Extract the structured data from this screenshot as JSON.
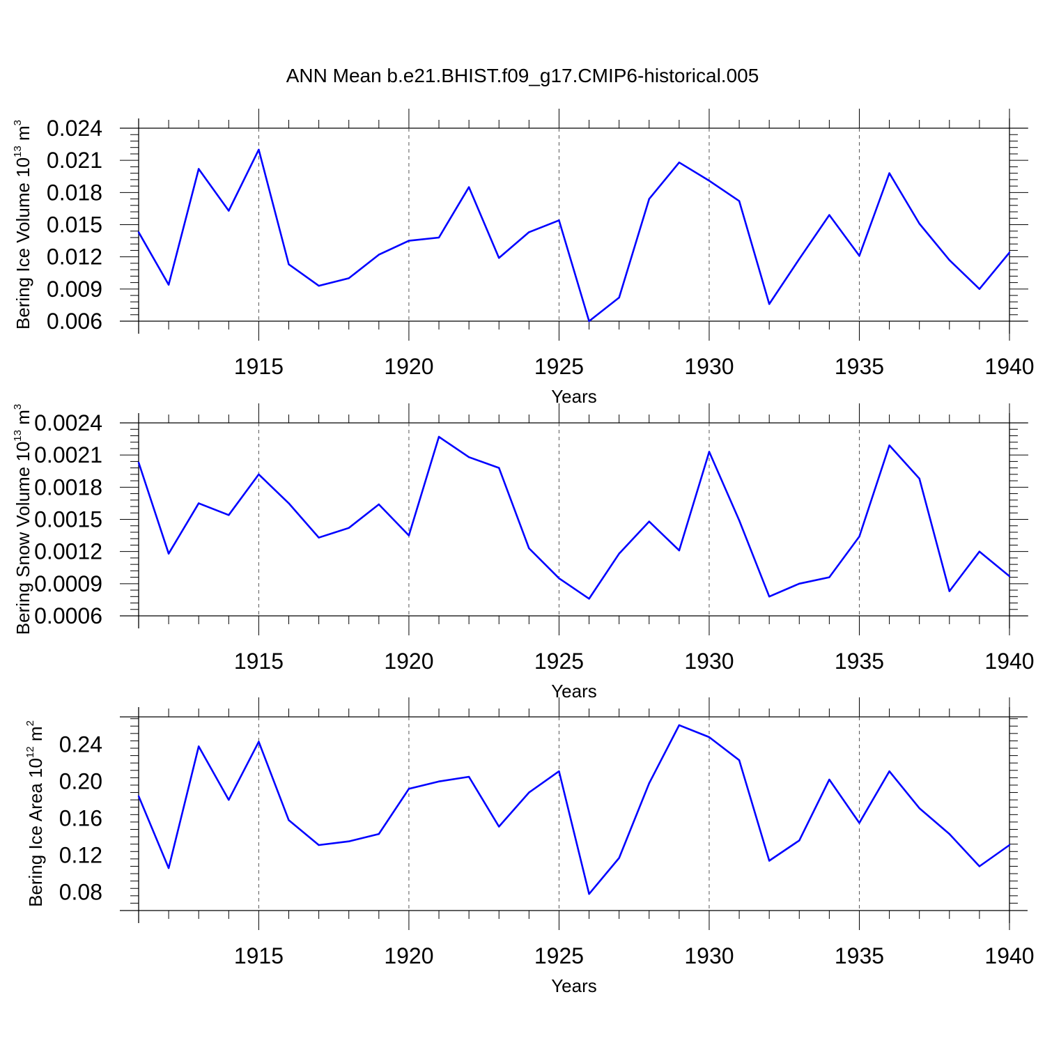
{
  "figure": {
    "title": "ANN Mean b.e21.BHIST.f09_g17.CMIP6-historical.005"
  },
  "colors": {
    "series_line": "#0000ff",
    "axes": "#000000",
    "grid": "#555555"
  },
  "chart_data": [
    {
      "type": "line",
      "title": "",
      "ylabel": {
        "main": "Bering Ice Volume 10",
        "exp": "13",
        "unit": " m",
        "unit_exp": "3"
      },
      "xlabel": "Years",
      "x": [
        1911,
        1912,
        1913,
        1914,
        1915,
        1916,
        1917,
        1918,
        1919,
        1920,
        1921,
        1922,
        1923,
        1924,
        1925,
        1926,
        1927,
        1928,
        1929,
        1930,
        1931,
        1932,
        1933,
        1934,
        1935,
        1936,
        1937,
        1938,
        1939,
        1940
      ],
      "values": [
        0.0143,
        0.0094,
        0.0202,
        0.0163,
        0.022,
        0.0113,
        0.0093,
        0.01,
        0.0122,
        0.0135,
        0.0138,
        0.0185,
        0.0119,
        0.0143,
        0.0154,
        0.006,
        0.0082,
        0.0174,
        0.0208,
        0.0191,
        0.0172,
        0.0076,
        0.0118,
        0.0159,
        0.0121,
        0.0198,
        0.0151,
        0.0117,
        0.009,
        0.0124
      ],
      "xlim": [
        1911,
        1940
      ],
      "ylim": [
        0.006,
        0.024
      ],
      "xticks": [
        1915,
        1920,
        1925,
        1930,
        1935,
        1940
      ],
      "xtick_labels": [
        "1915",
        "1920",
        "1925",
        "1930",
        "1935",
        "1940"
      ],
      "yticks": [
        0.006,
        0.009,
        0.012,
        0.015,
        0.018,
        0.021,
        0.024
      ],
      "ytick_labels": [
        "0.006",
        "0.009",
        "0.012",
        "0.015",
        "0.018",
        "0.021",
        "0.024"
      ],
      "grid": "vertical dashed at major x ticks"
    },
    {
      "type": "line",
      "title": "",
      "ylabel": {
        "main": "Bering Snow Volume 10",
        "exp": "13",
        "unit": " m",
        "unit_exp": "3"
      },
      "xlabel": "Years",
      "x": [
        1911,
        1912,
        1913,
        1914,
        1915,
        1916,
        1917,
        1918,
        1919,
        1920,
        1921,
        1922,
        1923,
        1924,
        1925,
        1926,
        1927,
        1928,
        1929,
        1930,
        1931,
        1932,
        1933,
        1934,
        1935,
        1936,
        1937,
        1938,
        1939,
        1940
      ],
      "values": [
        0.00203,
        0.00118,
        0.00165,
        0.00154,
        0.00192,
        0.00165,
        0.00133,
        0.00142,
        0.00164,
        0.00135,
        0.00227,
        0.00208,
        0.00198,
        0.00123,
        0.00095,
        0.00076,
        0.00118,
        0.00148,
        0.00121,
        0.00213,
        0.00149,
        0.00078,
        0.0009,
        0.00096,
        0.00134,
        0.00219,
        0.00188,
        0.00083,
        0.0012,
        0.00097
      ],
      "xlim": [
        1911,
        1940
      ],
      "ylim": [
        0.0006,
        0.0024
      ],
      "xticks": [
        1915,
        1920,
        1925,
        1930,
        1935,
        1940
      ],
      "xtick_labels": [
        "1915",
        "1920",
        "1925",
        "1930",
        "1935",
        "1940"
      ],
      "yticks": [
        0.0006,
        0.0009,
        0.0012,
        0.0015,
        0.0018,
        0.0021,
        0.0024
      ],
      "ytick_labels": [
        "0.0006",
        "0.0009",
        "0.0012",
        "0.0015",
        "0.0018",
        "0.0021",
        "0.0024"
      ],
      "grid": "vertical dashed at major x ticks"
    },
    {
      "type": "line",
      "title": "",
      "ylabel": {
        "main": "Bering Ice Area 10",
        "exp": "12",
        "unit": " m",
        "unit_exp": "2"
      },
      "xlabel": "Years",
      "x": [
        1911,
        1912,
        1913,
        1914,
        1915,
        1916,
        1917,
        1918,
        1919,
        1920,
        1921,
        1922,
        1923,
        1924,
        1925,
        1926,
        1927,
        1928,
        1929,
        1930,
        1931,
        1932,
        1933,
        1934,
        1935,
        1936,
        1937,
        1938,
        1939,
        1940
      ],
      "values": [
        0.184,
        0.106,
        0.238,
        0.18,
        0.243,
        0.158,
        0.131,
        0.135,
        0.143,
        0.192,
        0.2,
        0.205,
        0.151,
        0.188,
        0.211,
        0.078,
        0.117,
        0.198,
        0.261,
        0.248,
        0.223,
        0.114,
        0.136,
        0.202,
        0.155,
        0.211,
        0.171,
        0.143,
        0.108,
        0.131
      ],
      "xlim": [
        1911,
        1940
      ],
      "ylim": [
        0.06,
        0.27
      ],
      "xticks": [
        1915,
        1920,
        1925,
        1930,
        1935,
        1940
      ],
      "xtick_labels": [
        "1915",
        "1920",
        "1925",
        "1930",
        "1935",
        "1940"
      ],
      "yticks": [
        0.08,
        0.12,
        0.16,
        0.2,
        0.24
      ],
      "ytick_labels": [
        "0.08",
        "0.12",
        "0.16",
        "0.20",
        "0.24"
      ],
      "grid": "vertical dashed at major x ticks"
    }
  ]
}
